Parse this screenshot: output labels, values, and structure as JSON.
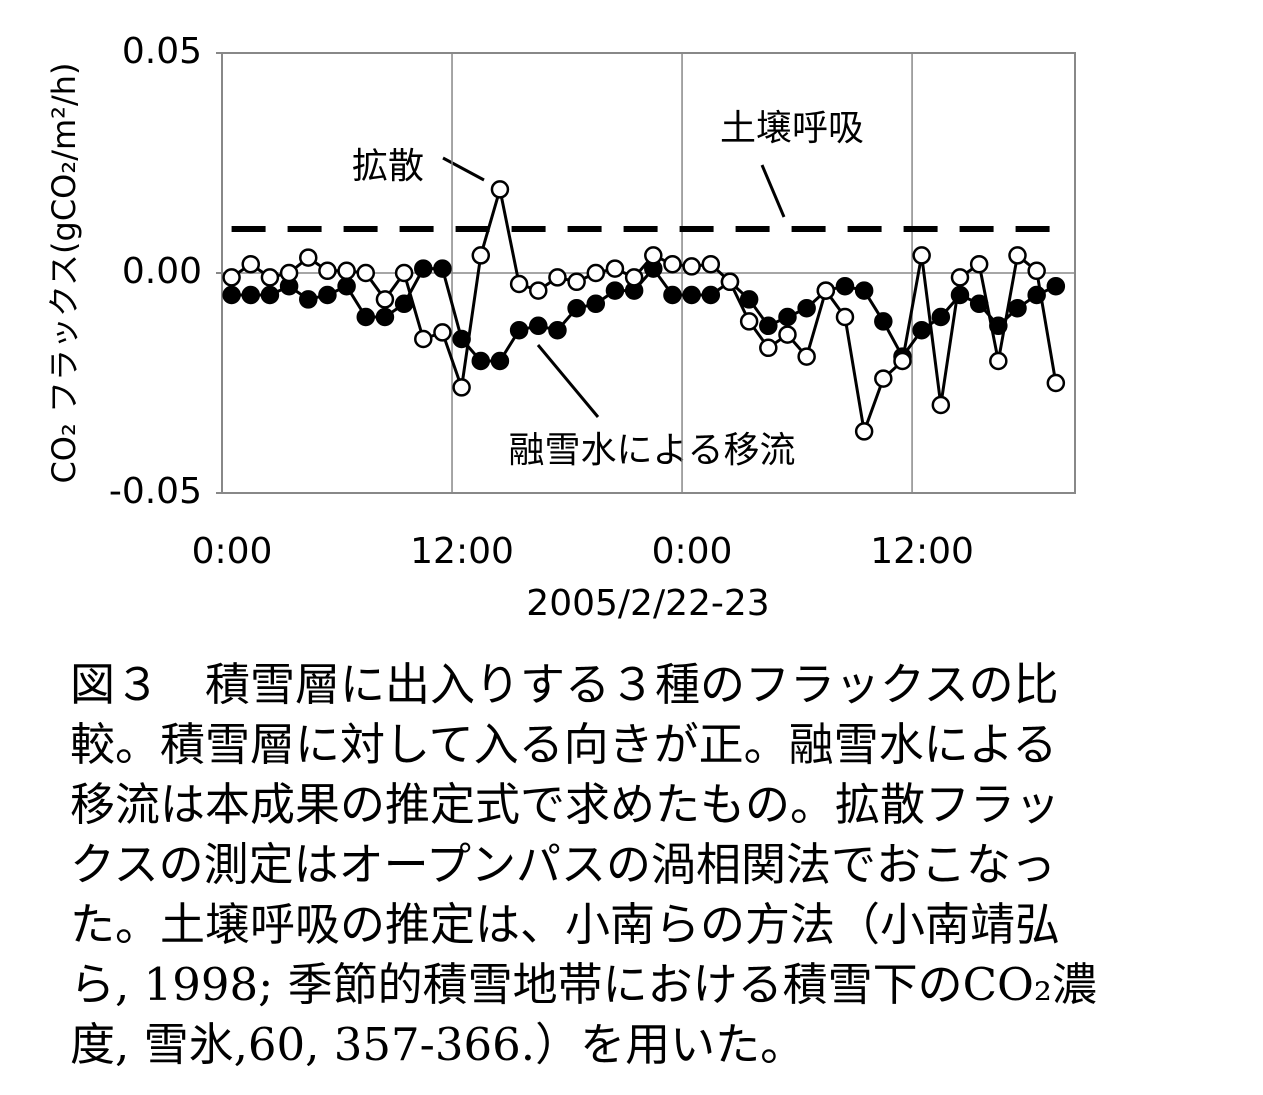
{
  "chart_data": {
    "type": "line",
    "ylabel": "CO₂ フラックス(gCO₂/m²/h)",
    "xlabel": "2005/2/22-23",
    "xlim": [
      0,
      44.5
    ],
    "ylim": [
      -0.05,
      0.05
    ],
    "xticks": [
      {
        "value": 0,
        "label": "0:00"
      },
      {
        "value": 12,
        "label": "12:00"
      },
      {
        "value": 24,
        "label": "0:00"
      },
      {
        "value": 36,
        "label": "12:00"
      }
    ],
    "yticks": [
      0.05,
      {
        "value": 0,
        "label": "0.00"
      },
      -0.05
    ],
    "grid": true,
    "x": [
      0.5,
      1.5,
      2.5,
      3.5,
      4.5,
      5.5,
      6.5,
      7.5,
      8.5,
      9.5,
      10.5,
      11.5,
      12.5,
      13.5,
      14.5,
      15.5,
      16.5,
      17.5,
      18.5,
      19.5,
      20.5,
      21.5,
      22.5,
      23.5,
      24.5,
      25.5,
      26.5,
      27.5,
      28.5,
      29.5,
      30.5,
      31.5,
      32.5,
      33.5,
      34.5,
      35.5,
      36.5,
      37.5,
      38.5,
      39.5,
      40.5,
      41.5,
      42.5,
      43.5
    ],
    "series": [
      {
        "name": "拡散",
        "color": "#000000",
        "marker": "open",
        "values": [
          -0.001,
          0.002,
          -0.001,
          0.0,
          0.0035,
          0.0005,
          0.0005,
          0.0,
          -0.006,
          0.0,
          -0.015,
          -0.0135,
          -0.026,
          0.004,
          0.019,
          -0.0025,
          -0.004,
          -0.001,
          -0.002,
          0.0,
          0.001,
          -0.001,
          0.004,
          0.002,
          0.0015,
          0.002,
          -0.002,
          -0.011,
          -0.017,
          -0.014,
          -0.019,
          -0.004,
          -0.01,
          -0.036,
          -0.024,
          -0.02,
          0.004,
          -0.03,
          -0.001,
          0.002,
          -0.02,
          0.004,
          0.0005,
          -0.025
        ]
      },
      {
        "name": "融雪水による移流",
        "color": "#000000",
        "marker": "filled",
        "values": [
          -0.005,
          -0.005,
          -0.005,
          -0.003,
          -0.006,
          -0.005,
          -0.003,
          -0.01,
          -0.01,
          -0.007,
          0.001,
          0.001,
          -0.015,
          -0.02,
          -0.02,
          -0.013,
          -0.012,
          -0.013,
          -0.008,
          -0.007,
          -0.004,
          -0.004,
          0.001,
          -0.005,
          -0.005,
          -0.005,
          -0.002,
          -0.006,
          -0.012,
          -0.01,
          -0.008,
          -0.004,
          -0.003,
          -0.004,
          -0.011,
          -0.019,
          -0.013,
          -0.01,
          -0.005,
          -0.007,
          -0.012,
          -0.008,
          -0.005,
          -0.003
        ]
      }
    ],
    "reference_line": {
      "name": "土壌呼吸",
      "value": 0.01,
      "x": [
        0.5,
        43.5
      ],
      "color": "#000000"
    }
  },
  "caption_lines": [
    "図３　積雪層に出入りする３種のフラックスの比",
    "較。積雪層に対して入る向きが正。融雪水による",
    "移流は本成果の推定式で求めたもの。拡散フラッ",
    "クスの測定はオープンパスの渦相関法でおこなっ",
    "た。土壌呼吸の推定は、小南らの方法（小南靖弘",
    "ら, 1998; 季節的積雪地帯における積雪下のCO₂濃",
    "度, 雪氷,60, 357-366.）を用いた。"
  ]
}
